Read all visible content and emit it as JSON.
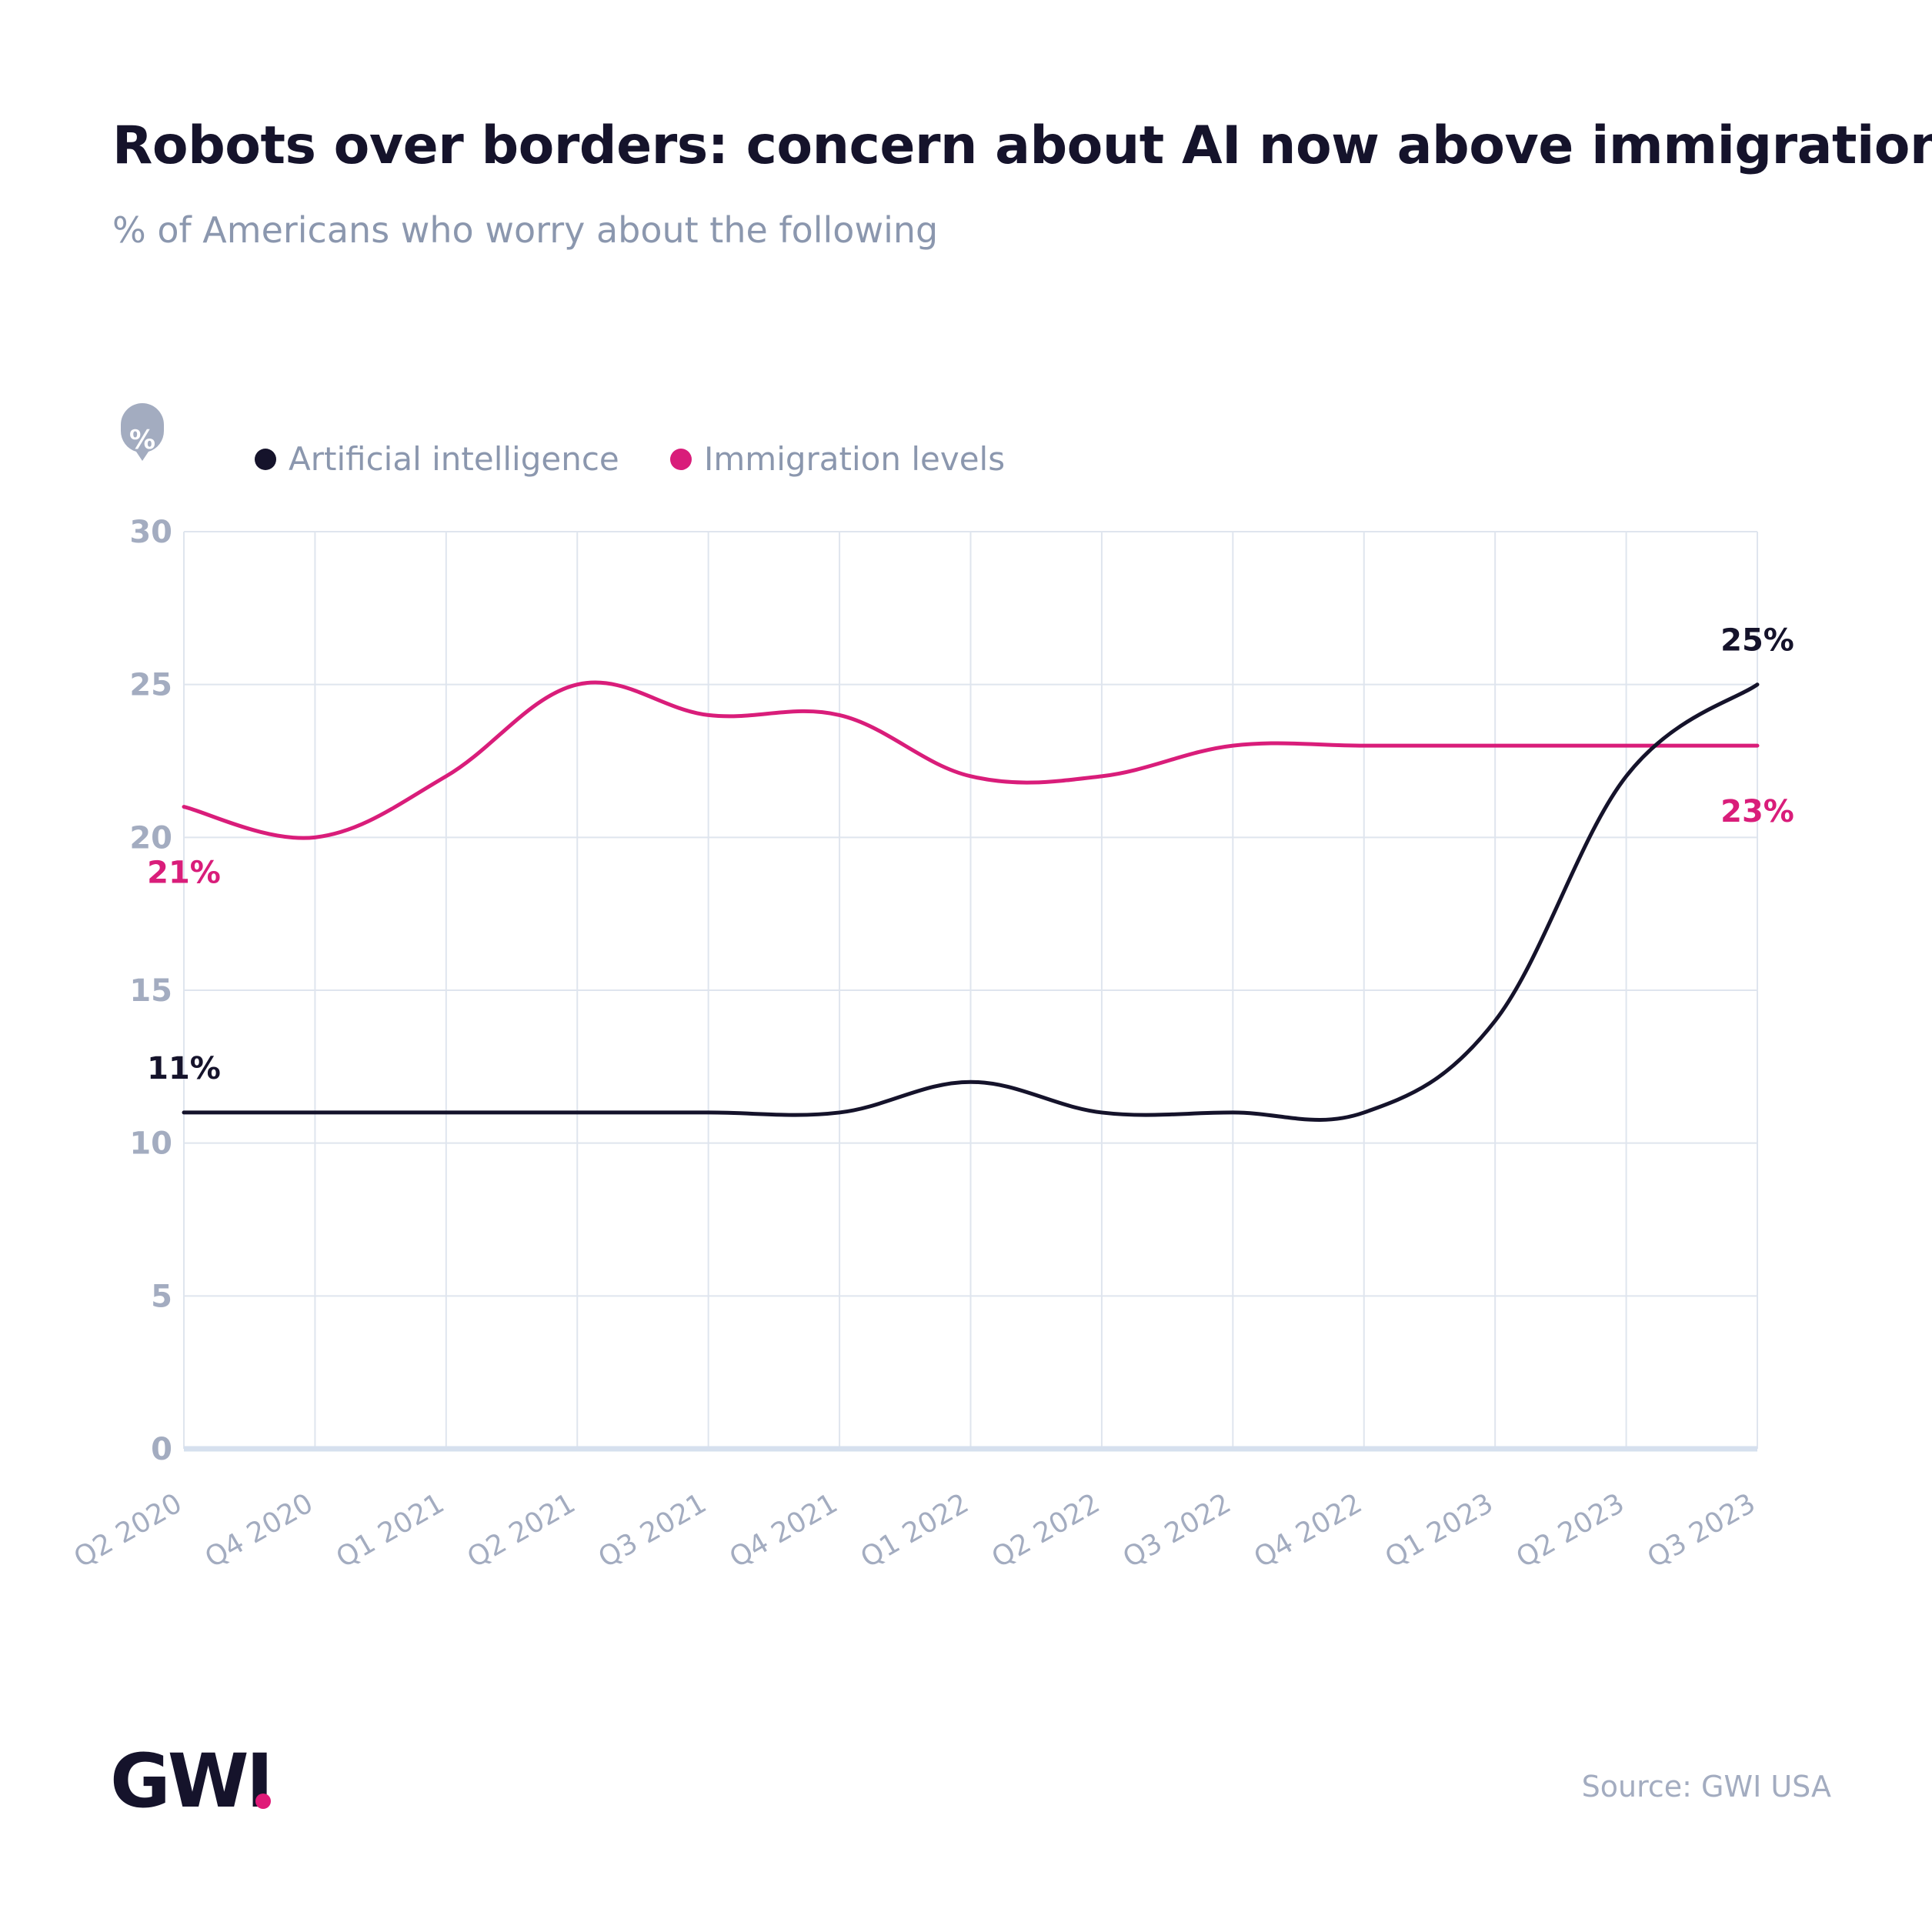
{
  "title": "Robots over borders: concern about AI now above immigration",
  "subtitle": "% of Americans who worry about the following",
  "unit_badge": "%",
  "source": "Source: GWI USA",
  "logo": {
    "text": "GWI",
    "accent_color": "#e01a78"
  },
  "colors": {
    "ai": "#15132b",
    "immigration": "#d91d7a",
    "axis_text": "#a3acc0",
    "grid": "#dfe5ee",
    "baseline": "#d6e0ee"
  },
  "chart_data": {
    "type": "line",
    "title": "Robots over borders: concern about AI now above immigration",
    "subtitle": "% of Americans who worry about the following",
    "x": [
      "Q2 2020",
      "Q4 2020",
      "Q1 2021",
      "Q2 2021",
      "Q3 2021",
      "Q4 2021",
      "Q1 2022",
      "Q2 2022",
      "Q3 2022",
      "Q4 2022",
      "Q1 2023",
      "Q2 2023",
      "Q3 2023"
    ],
    "series": [
      {
        "name": "Artificial intelligence",
        "color": "#15132b",
        "values": [
          11,
          11,
          11,
          11,
          11,
          11,
          12,
          11,
          11,
          11,
          14,
          22,
          25
        ]
      },
      {
        "name": "Immigration levels",
        "color": "#d91d7a",
        "values": [
          21,
          20,
          22,
          25,
          24,
          24,
          22,
          22,
          23,
          23,
          23,
          23,
          23
        ]
      }
    ],
    "ylim": [
      0,
      30
    ],
    "yticks": [
      0,
      5,
      10,
      15,
      20,
      25,
      30
    ],
    "grid": true,
    "legend": "top-left",
    "annotations": [
      {
        "text": "11%",
        "series": "Artificial intelligence",
        "at": "Q2 2020",
        "color": "#15132b"
      },
      {
        "text": "21%",
        "series": "Immigration levels",
        "at": "Q2 2020",
        "color": "#d91d7a"
      },
      {
        "text": "25%",
        "series": "Artificial intelligence",
        "at": "Q3 2023",
        "color": "#15132b"
      },
      {
        "text": "23%",
        "series": "Immigration levels",
        "at": "Q3 2023",
        "color": "#d91d7a"
      }
    ]
  }
}
